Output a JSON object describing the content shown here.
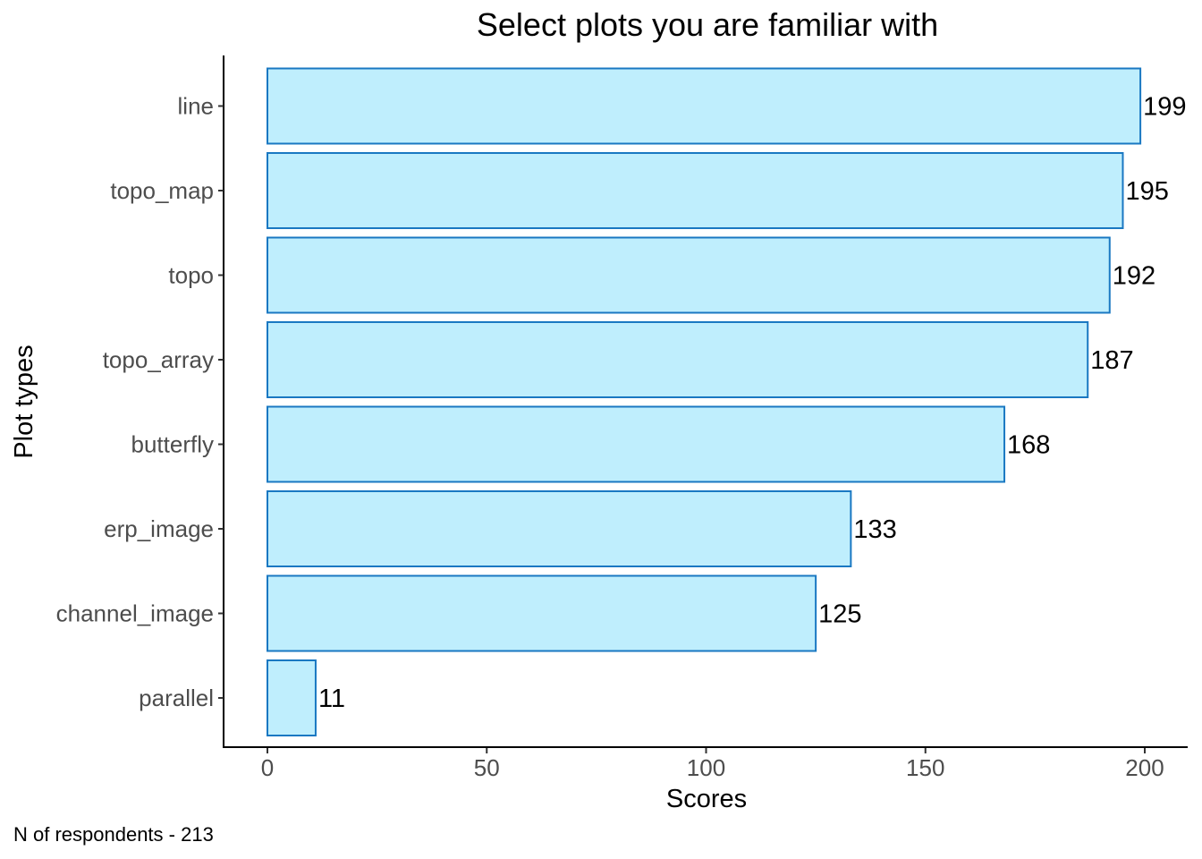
{
  "chart_data": {
    "type": "bar",
    "orientation": "horizontal",
    "title": "Select plots you are familiar with",
    "xlabel": "Scores",
    "ylabel": "Plot types",
    "categories": [
      "line",
      "topo_map",
      "topo",
      "topo_array",
      "butterfly",
      "erp_image",
      "channel_image",
      "parallel"
    ],
    "values": [
      199,
      195,
      192,
      187,
      168,
      133,
      125,
      11
    ],
    "xlim": [
      0,
      200
    ],
    "xticks": [
      0,
      50,
      100,
      150,
      200
    ],
    "grid": false,
    "legend": "none",
    "bar_fill": "#bfeefd",
    "bar_stroke": "#1a78c2",
    "caption": "N of respondents - 213"
  }
}
